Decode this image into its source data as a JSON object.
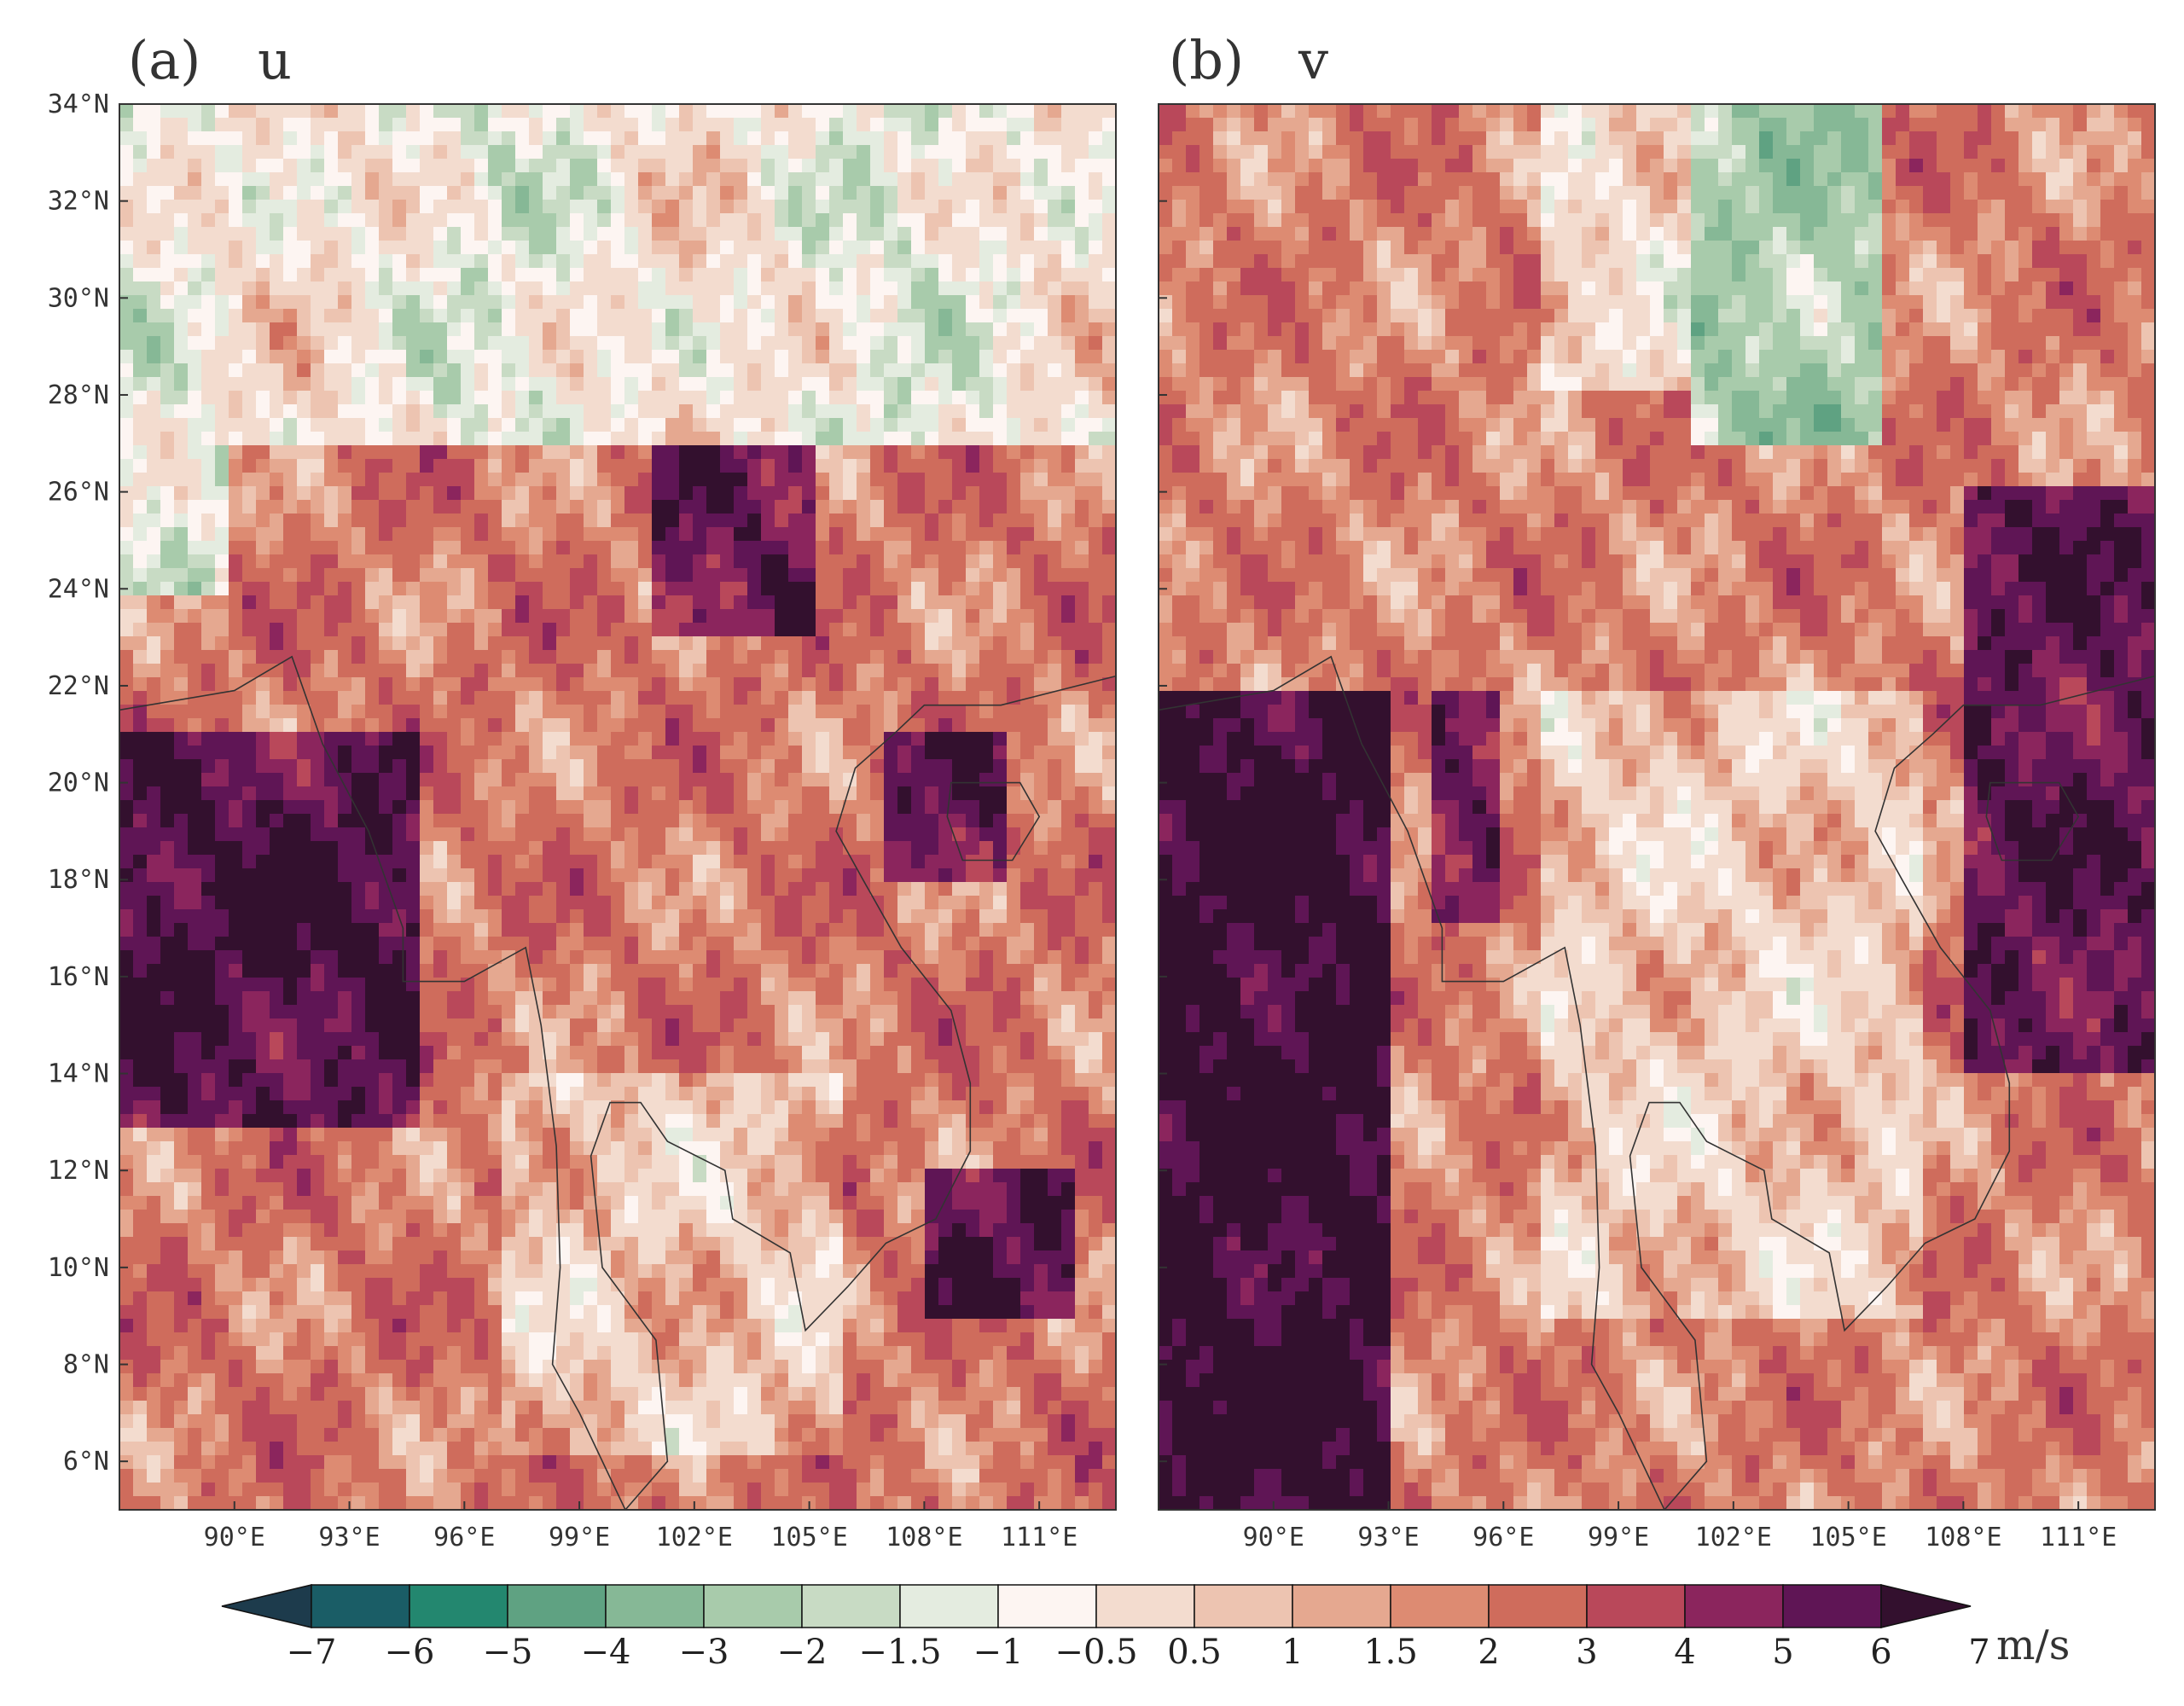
{
  "panels": [
    {
      "id": "a",
      "label": "(a)",
      "variable": "u"
    },
    {
      "id": "b",
      "label": "(b)",
      "variable": "v"
    }
  ],
  "axes": {
    "lat_ticks": [
      "34°N",
      "32°N",
      "30°N",
      "28°N",
      "26°N",
      "24°N",
      "22°N",
      "20°N",
      "18°N",
      "16°N",
      "14°N",
      "12°N",
      "10°N",
      "8°N",
      "6°N"
    ],
    "lat_values": [
      34,
      32,
      30,
      28,
      26,
      24,
      22,
      20,
      18,
      16,
      14,
      12,
      10,
      8,
      6
    ],
    "lon_ticks": [
      "90°E",
      "93°E",
      "96°E",
      "99°E",
      "102°E",
      "105°E",
      "108°E",
      "111°E"
    ],
    "lon_values": [
      90,
      93,
      96,
      99,
      102,
      105,
      108,
      111
    ],
    "lon_range": [
      87,
      113
    ],
    "lat_range": [
      5,
      34
    ]
  },
  "colorbar": {
    "labels": [
      "−7",
      "−6",
      "−5",
      "−4",
      "−3",
      "−2",
      "−1.5",
      "−1",
      "−0.5",
      "0.5",
      "1",
      "1.5",
      "2",
      "3",
      "4",
      "5",
      "6",
      "7"
    ],
    "levels": [
      -7,
      -6,
      -5,
      -4,
      -3,
      -2,
      -1.5,
      -1,
      -0.5,
      0.5,
      1,
      1.5,
      2,
      3,
      4,
      5,
      6,
      7
    ],
    "colors": [
      "#1d3b4c",
      "#1a5d66",
      "#23876f",
      "#5fa282",
      "#86b896",
      "#a8cbab",
      "#c8dbc4",
      "#e4ece0",
      "#fdf5f2",
      "#f3dccf",
      "#edc4b1",
      "#e5a890",
      "#dd8b72",
      "#cf6c5c",
      "#b9485a",
      "#8b255d",
      "#5f1555",
      "#33102e"
    ],
    "unit": "m/s"
  }
}
